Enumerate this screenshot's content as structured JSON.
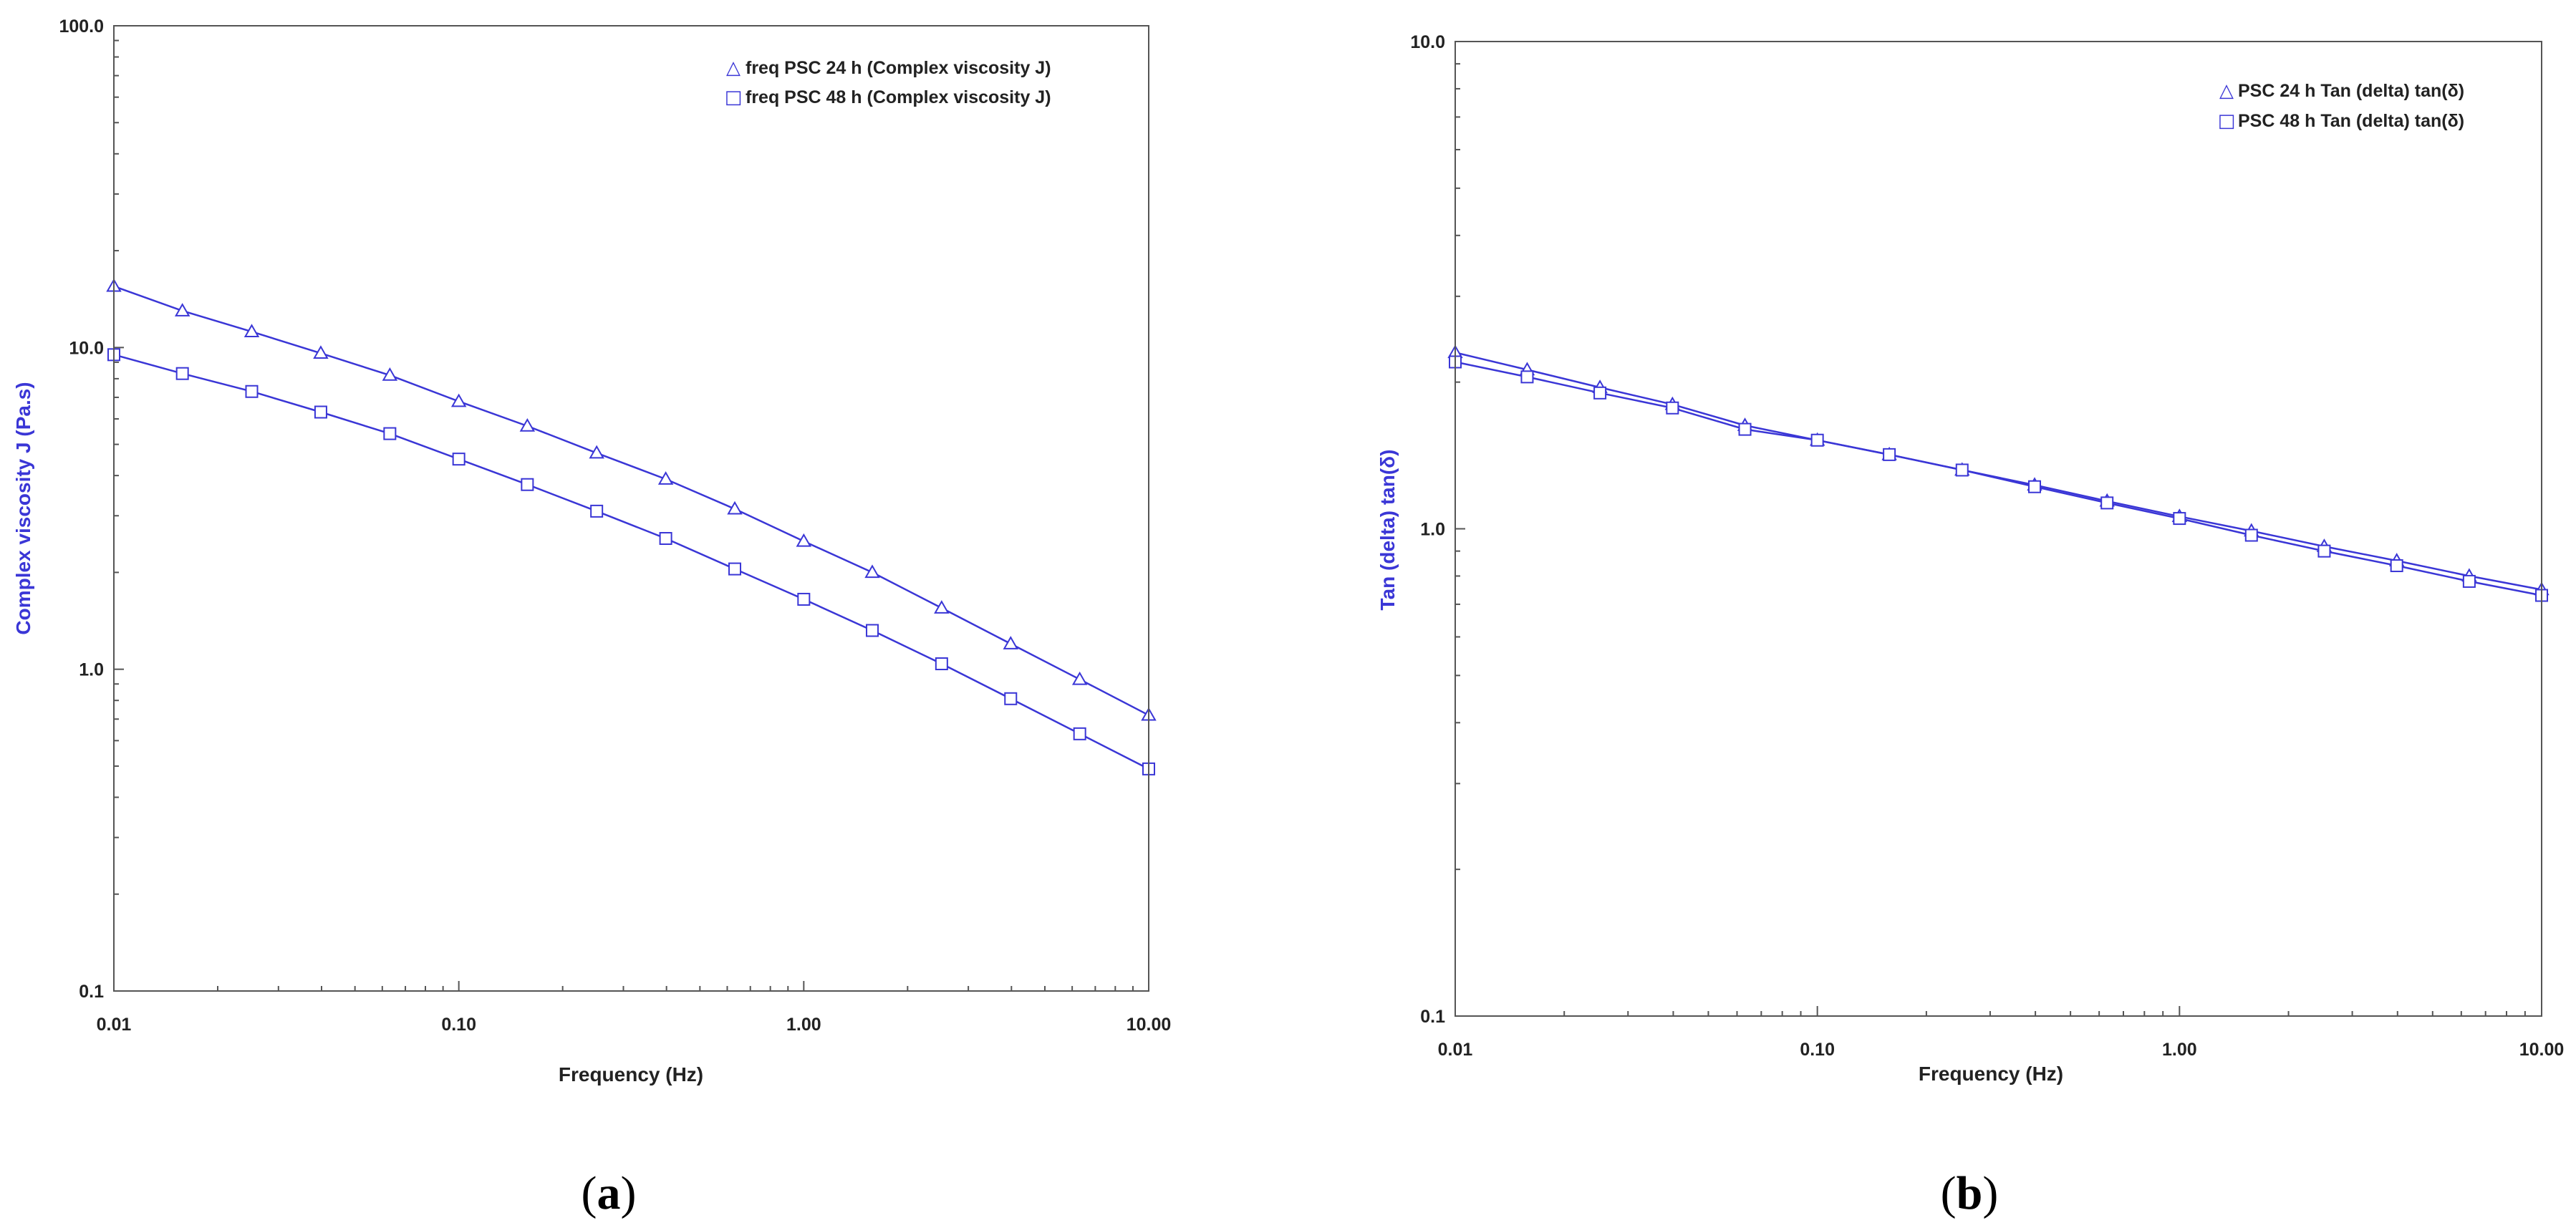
{
  "colors": {
    "series": "#3a36d6",
    "axis": "#555555",
    "text": "#222222"
  },
  "chart_data": [
    {
      "type": "line",
      "panel_label": "a",
      "xlabel": "Frequency (Hz)",
      "ylabel": "Complex viscosity J (Pa.s)",
      "x_scale": "log",
      "y_scale": "log",
      "xlim": [
        0.01,
        10
      ],
      "ylim": [
        0.1,
        100
      ],
      "x_ticks": [
        "0.01",
        "0.10",
        "1.00",
        "10.00"
      ],
      "y_ticks": [
        "100.0",
        "10.0",
        "1.0",
        "0.1"
      ],
      "grid": false,
      "legend_position": "top-right",
      "series": [
        {
          "name": "freq PSC 24 h (Complex viscosity J)",
          "marker": "triangle",
          "x": [
            0.01,
            0.0158,
            0.0251,
            0.0398,
            0.0631,
            0.1,
            0.158,
            0.251,
            0.398,
            0.631,
            1.0,
            1.58,
            2.51,
            3.98,
            6.31,
            10.0
          ],
          "y": [
            15.5,
            13.0,
            11.2,
            9.6,
            8.2,
            6.8,
            5.7,
            4.7,
            3.9,
            3.15,
            2.5,
            2.0,
            1.55,
            1.2,
            0.93,
            0.72
          ]
        },
        {
          "name": "freq PSC 48 h (Complex viscosity J)",
          "marker": "square",
          "x": [
            0.01,
            0.0158,
            0.0251,
            0.0398,
            0.0631,
            0.1,
            0.158,
            0.251,
            0.398,
            0.631,
            1.0,
            1.58,
            2.51,
            3.98,
            6.31,
            10.0
          ],
          "y": [
            9.5,
            8.3,
            7.3,
            6.3,
            5.4,
            4.5,
            3.75,
            3.1,
            2.55,
            2.05,
            1.65,
            1.32,
            1.04,
            0.81,
            0.63,
            0.49
          ]
        }
      ]
    },
    {
      "type": "line",
      "panel_label": "b",
      "xlabel": "Frequency (Hz)",
      "ylabel": "Tan (delta) tan(δ)",
      "x_scale": "log",
      "y_scale": "log",
      "xlim": [
        0.01,
        10
      ],
      "ylim": [
        0.1,
        10
      ],
      "x_ticks": [
        "0.01",
        "0.10",
        "1.00",
        "10.00"
      ],
      "y_ticks": [
        "10.0",
        "1.0",
        "0.1"
      ],
      "grid": false,
      "legend_position": "top-right",
      "series": [
        {
          "name": "PSC 24 h Tan (delta) tan(δ)",
          "marker": "triangle",
          "x": [
            0.01,
            0.0158,
            0.0251,
            0.0398,
            0.0631,
            0.1,
            0.158,
            0.251,
            0.398,
            0.631,
            1.0,
            1.58,
            2.51,
            3.98,
            6.31,
            10.0
          ],
          "y": [
            2.3,
            2.12,
            1.95,
            1.8,
            1.63,
            1.52,
            1.42,
            1.32,
            1.23,
            1.14,
            1.06,
            0.99,
            0.92,
            0.86,
            0.8,
            0.75
          ]
        },
        {
          "name": "PSC 48 h Tan (delta) tan(δ)",
          "marker": "square",
          "x": [
            0.01,
            0.0158,
            0.0251,
            0.0398,
            0.0631,
            0.1,
            0.158,
            0.251,
            0.398,
            0.631,
            1.0,
            1.58,
            2.51,
            3.98,
            6.31,
            10.0
          ],
          "y": [
            2.2,
            2.05,
            1.9,
            1.77,
            1.6,
            1.52,
            1.42,
            1.32,
            1.22,
            1.13,
            1.05,
            0.97,
            0.9,
            0.84,
            0.78,
            0.73
          ]
        }
      ]
    }
  ]
}
